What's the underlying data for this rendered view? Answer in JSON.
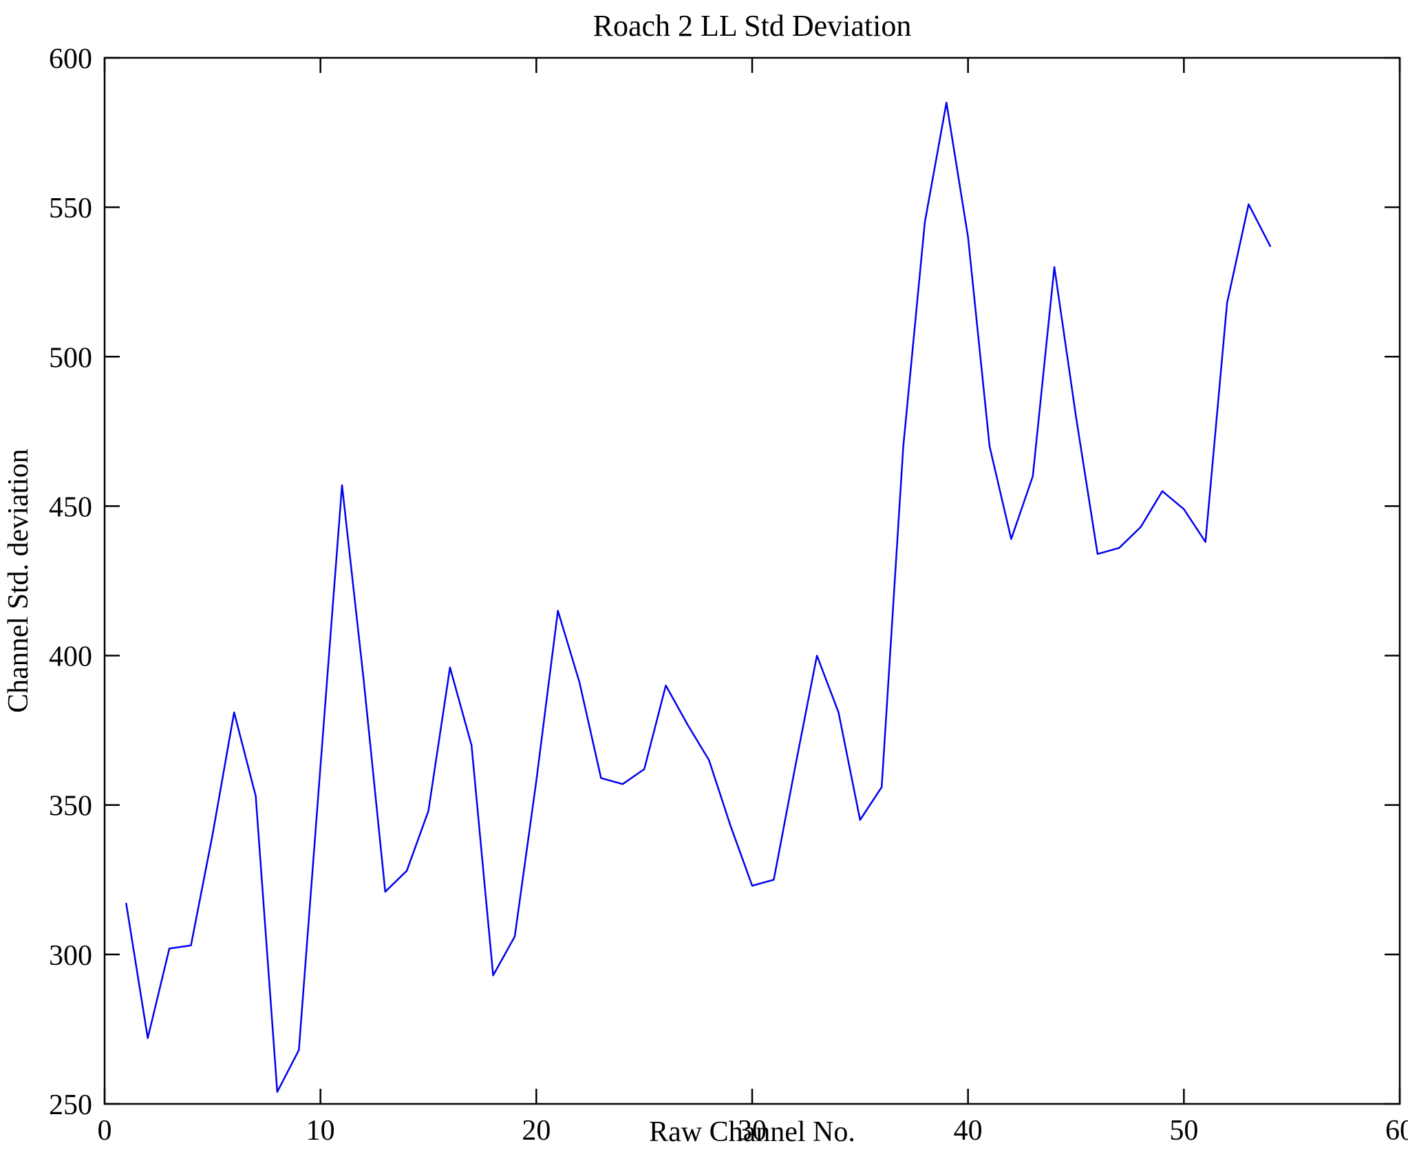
{
  "page": {
    "background": "#ffffff"
  },
  "chart_data": {
    "type": "line",
    "title": "Roach 2 LL Std Deviation",
    "xlabel": "Raw Channel No.",
    "ylabel": "Channel Std. deviation",
    "xlim": [
      0,
      60
    ],
    "ylim": [
      250,
      600
    ],
    "xticks": [
      0,
      10,
      20,
      30,
      40,
      50,
      60
    ],
    "yticks": [
      250,
      300,
      350,
      400,
      450,
      500,
      550,
      600
    ],
    "grid": false,
    "legend": "none",
    "line_color": "#0000ee",
    "axis_color": "#000000",
    "series": [
      {
        "name": "Channel Std. deviation",
        "x": [
          1,
          2,
          3,
          4,
          5,
          6,
          7,
          8,
          9,
          10,
          11,
          12,
          13,
          14,
          15,
          16,
          17,
          18,
          19,
          20,
          21,
          22,
          23,
          24,
          25,
          26,
          27,
          28,
          29,
          30,
          31,
          32,
          33,
          34,
          35,
          36,
          37,
          38,
          39,
          40,
          41,
          42,
          43,
          44,
          45,
          46,
          47,
          48,
          49,
          50,
          51,
          52,
          53,
          54
        ],
        "y": [
          317,
          272,
          302,
          303,
          340,
          381,
          353,
          254,
          268,
          363,
          457,
          392,
          321,
          328,
          348,
          396,
          370,
          293,
          306,
          358,
          415,
          391,
          359,
          357,
          362,
          390,
          377,
          365,
          343,
          323,
          325,
          363,
          400,
          381,
          345,
          356,
          470,
          545,
          585,
          540,
          470,
          439,
          460,
          530,
          480,
          434,
          436,
          443,
          455,
          449,
          438,
          518,
          551,
          537
        ]
      }
    ]
  }
}
